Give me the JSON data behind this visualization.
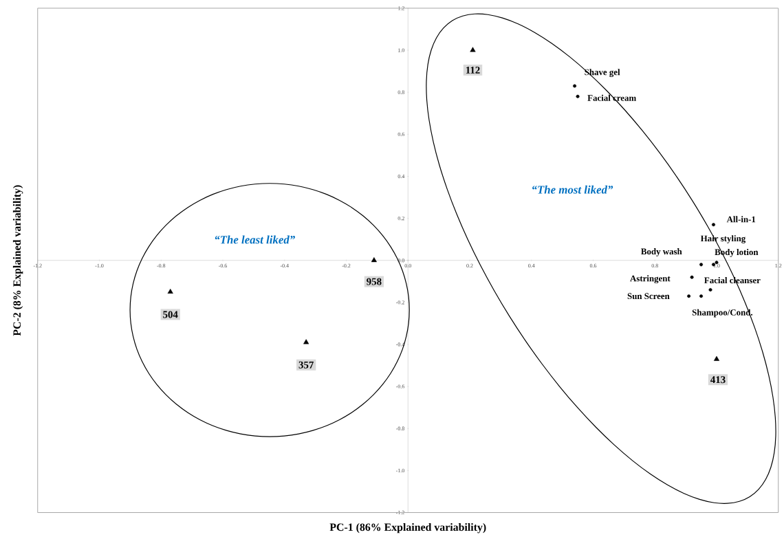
{
  "chart_data": {
    "type": "scatter",
    "xlabel": "PC-1 (86% Explained  variability)",
    "ylabel": "PC-2 (8% Explained  variability)",
    "xlim": [
      -1.2,
      1.2
    ],
    "ylim": [
      -1.2,
      1.2
    ],
    "xticks": [
      {
        "value": -1.2,
        "label": "-1.2"
      },
      {
        "value": -1.0,
        "label": "-1.0"
      },
      {
        "value": -0.8,
        "label": "-0.8"
      },
      {
        "value": -0.6,
        "label": "-0.6"
      },
      {
        "value": -0.4,
        "label": "-0.4"
      },
      {
        "value": -0.2,
        "label": "-0.2"
      },
      {
        "value": 0,
        "label": "0.0"
      },
      {
        "value": 0.2,
        "label": "0.2"
      },
      {
        "value": 0.4,
        "label": "0.4"
      },
      {
        "value": 0.6,
        "label": "0.6"
      },
      {
        "value": 0.8,
        "label": "0.8"
      },
      {
        "value": 1.0,
        "label": "1.0"
      },
      {
        "value": 1.2,
        "label": "1.2"
      }
    ],
    "yticks": [
      {
        "value": -1.2,
        "label": "-1.2"
      },
      {
        "value": -1.0,
        "label": "-1.0"
      },
      {
        "value": -0.8,
        "label": "-0.8"
      },
      {
        "value": -0.6,
        "label": "-0.6"
      },
      {
        "value": -0.4,
        "label": "-0.4"
      },
      {
        "value": -0.2,
        "label": "-0.2"
      },
      {
        "value": 0,
        "label": "0.0"
      },
      {
        "value": 0.2,
        "label": "0.2"
      },
      {
        "value": 0.4,
        "label": "0.4"
      },
      {
        "value": 0.6,
        "label": "0.6"
      },
      {
        "value": 0.8,
        "label": "0.8"
      },
      {
        "value": 1.0,
        "label": "1.0"
      },
      {
        "value": 1.2,
        "label": "1.2"
      }
    ],
    "grid": false,
    "series": [
      {
        "color": "#000000",
        "marker": "triangle",
        "x": [
          0.21,
          -0.11,
          -0.77,
          -0.33,
          1.0
        ],
        "values": [
          1.0,
          0.0,
          -0.15,
          -0.39,
          -0.47
        ]
      },
      {
        "color": "#000000",
        "marker": "circle",
        "x": [
          0.54,
          0.55,
          0.99,
          0.99,
          0.95,
          1.0,
          0.92,
          0.98,
          0.91,
          0.95
        ],
        "values": [
          0.83,
          0.78,
          0.17,
          -0.02,
          -0.02,
          -0.01,
          -0.08,
          -0.14,
          -0.17,
          -0.17
        ]
      }
    ],
    "annotations": [
      {
        "text": "112",
        "x": 0.21,
        "y": 1.0
      },
      {
        "text": "958",
        "x": -0.11,
        "y": 0.0
      },
      {
        "text": "504",
        "x": -0.77,
        "y": -0.15
      },
      {
        "text": "357",
        "x": -0.33,
        "y": -0.39
      },
      {
        "text": "413",
        "x": 1.0,
        "y": -0.47
      },
      {
        "text": "Shave gel",
        "x": 0.54,
        "y": 0.83
      },
      {
        "text": "Facial cream",
        "x": 0.55,
        "y": 0.78
      },
      {
        "text": "All-in-1",
        "x": 0.99,
        "y": 0.17
      },
      {
        "text": "Hair styling",
        "x": 0.99,
        "y": -0.02
      },
      {
        "text": "Body wash",
        "x": 0.95,
        "y": -0.02
      },
      {
        "text": "Body lotion",
        "x": 1.0,
        "y": -0.01
      },
      {
        "text": "Astringent",
        "x": 0.92,
        "y": -0.08
      },
      {
        "text": "Facial cleanser",
        "x": 0.98,
        "y": -0.14
      },
      {
        "text": "Sun Screen",
        "x": 0.91,
        "y": -0.17
      },
      {
        "text": "Shampoo/Cond.",
        "x": 0.95,
        "y": -0.17
      },
      "“The least liked”",
      "“The most liked”"
    ]
  }
}
